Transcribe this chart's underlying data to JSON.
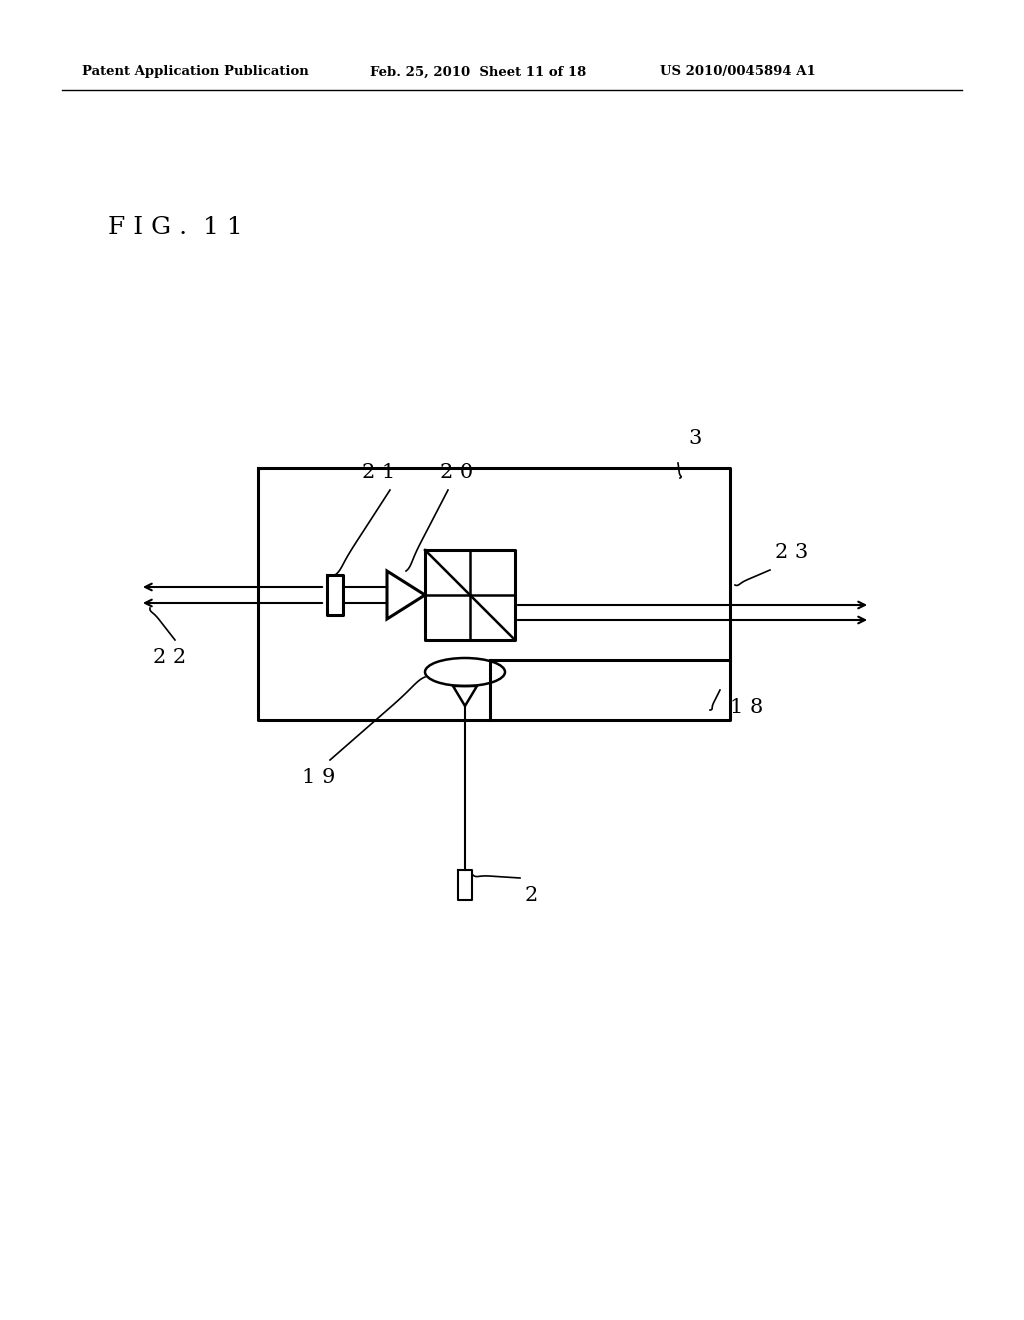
{
  "bg_color": "#ffffff",
  "header_left": "Patent Application Publication",
  "header_mid": "Feb. 25, 2010  Sheet 11 of 18",
  "header_right": "US 2010/0045894 A1",
  "fig_label": "F I G .  1 1",
  "label_21": "2 1",
  "label_20": "2 0",
  "label_3": "3",
  "label_22": "2 2",
  "label_23": "2 3",
  "label_18": "1 8",
  "label_19": "1 9",
  "label_2": "2"
}
